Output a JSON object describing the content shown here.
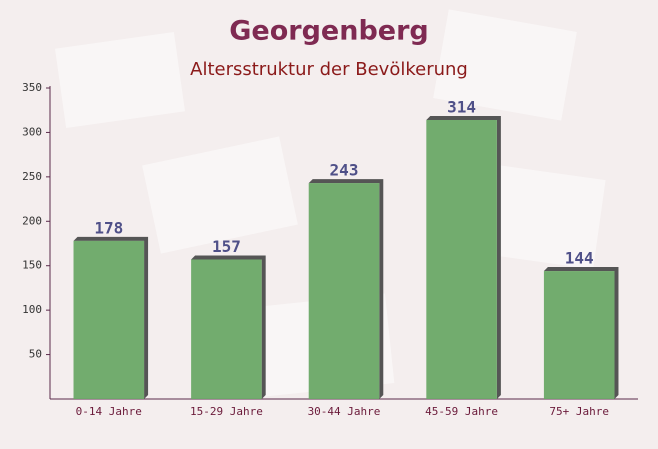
{
  "chart_data": {
    "type": "bar",
    "title": "Georgenberg",
    "subtitle": "Altersstruktur der Bevölkerung",
    "categories": [
      "0-14 Jahre",
      "15-29 Jahre",
      "30-44 Jahre",
      "45-59 Jahre",
      "75+ Jahre"
    ],
    "values": [
      178,
      157,
      243,
      314,
      144
    ],
    "color": "#6aa866",
    "ylim": [
      0,
      350
    ],
    "yticks": [
      50,
      100,
      150,
      200,
      250,
      300,
      350
    ],
    "grid": false
  }
}
